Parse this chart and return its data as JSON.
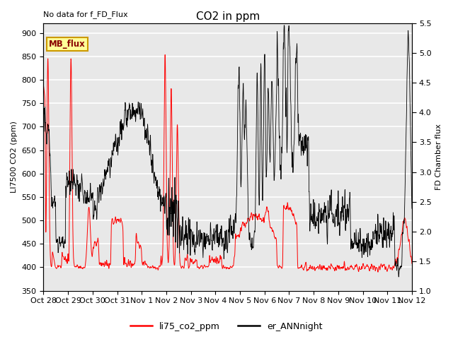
{
  "title": "CO2 in ppm",
  "top_left_text": "No data for f_FD_Flux",
  "ylabel_left": "LI7500 CO2 (ppm)",
  "ylabel_right": "FD Chamber flux",
  "ylim_left": [
    350,
    920
  ],
  "ylim_right": [
    1.0,
    5.5
  ],
  "yticks_left": [
    350,
    400,
    450,
    500,
    550,
    600,
    650,
    700,
    750,
    800,
    850,
    900
  ],
  "yticks_right": [
    1.0,
    1.5,
    2.0,
    2.5,
    3.0,
    3.5,
    4.0,
    4.5,
    5.0,
    5.5
  ],
  "legend_label1": "li75_co2_ppm",
  "legend_label2": "er_ANNnight",
  "legend_box_label": "MB_flux",
  "line1_color": "#FF0000",
  "line2_color": "#000000",
  "background_color": "#FFFFFF",
  "plot_bg_color": "#E8E8E8",
  "grid_color": "#FFFFFF",
  "legend_box_color": "#FFFF99",
  "legend_box_edge_color": "#CC9900",
  "xtick_labels": [
    "Oct 28",
    "Oct 29",
    "Oct 30",
    "Oct 31",
    "Nov 1",
    "Nov 2",
    "Nov 3",
    "Nov 4",
    "Nov 5",
    "Nov 6",
    "Nov 7",
    "Nov 8",
    "Nov 9",
    "Nov 10",
    "Nov 11",
    "Nov 12"
  ],
  "figsize": [
    6.4,
    4.8
  ],
  "dpi": 100
}
